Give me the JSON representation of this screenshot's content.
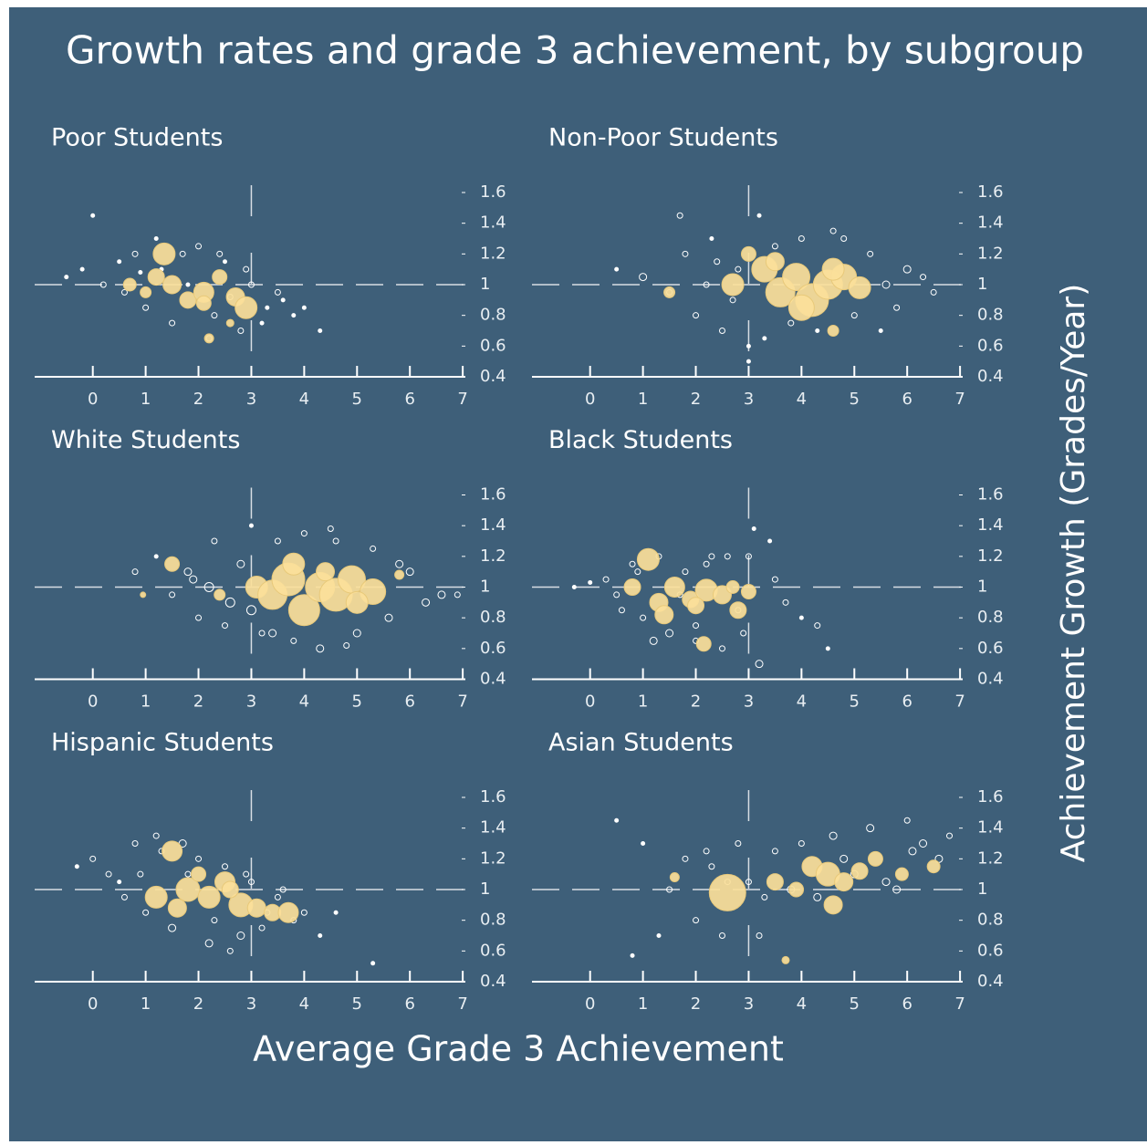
{
  "title": "Growth rates and grade 3 achievement, by subgroup",
  "xlabel": "Average Grade 3 Achievement",
  "ylabel": "Achievement Growth (Grades/Year)",
  "chart_data": [
    {
      "type": "scatter",
      "title": "Poor Students",
      "xlim": [
        -1.1,
        7.05
      ],
      "ylim": [
        0.4,
        1.6
      ],
      "xticks": [
        0,
        1,
        2,
        3,
        4,
        5,
        6,
        7
      ],
      "yticks": [
        0.4,
        0.6,
        0.8,
        1.0,
        1.2,
        1.4,
        1.6
      ],
      "xref": 3,
      "yref": 1.0,
      "series": [
        {
          "color": "#ffffff",
          "x": [
            -0.5,
            -0.2,
            0.2,
            0.5,
            0.8,
            1.0,
            1.3,
            1.5,
            1.8,
            2.0,
            2.3,
            2.5,
            2.8,
            3.0,
            3.3,
            3.5,
            3.8,
            4.0,
            4.3,
            0.6,
            1.2,
            2.2,
            2.9,
            3.6,
            1.7,
            0.9,
            2.6,
            3.2,
            0.0,
            2.4
          ],
          "y": [
            1.05,
            1.1,
            1.0,
            1.15,
            1.2,
            0.85,
            1.1,
            0.75,
            1.0,
            1.25,
            0.8,
            1.15,
            0.7,
            1.0,
            0.85,
            0.95,
            0.8,
            0.85,
            0.7,
            0.95,
            1.3,
            0.65,
            1.1,
            0.9,
            1.2,
            1.08,
            0.92,
            0.75,
            1.45,
            1.2
          ],
          "sizes": [
            2,
            2,
            3,
            2,
            3,
            3,
            2,
            3,
            2,
            3,
            3,
            2,
            3,
            3,
            2,
            3,
            2,
            2,
            2,
            3,
            2,
            3,
            3,
            2,
            3,
            2,
            3,
            2,
            2,
            3
          ]
        },
        {
          "color": "#fbe09a",
          "x": [
            1.35,
            0.7,
            1.0,
            1.5,
            1.8,
            2.1,
            2.4,
            2.7,
            2.9,
            2.2,
            1.2,
            2.6,
            2.1
          ],
          "y": [
            1.2,
            1.0,
            0.95,
            1.0,
            0.9,
            0.95,
            1.05,
            0.92,
            0.85,
            0.65,
            1.05,
            0.75,
            0.88
          ],
          "sizes": [
            12,
            7,
            6,
            10,
            9,
            11,
            8,
            10,
            12,
            5,
            9,
            4,
            8
          ]
        }
      ]
    },
    {
      "type": "scatter",
      "title": "Non-Poor Students",
      "xlim": [
        -1.1,
        7.05
      ],
      "ylim": [
        0.4,
        1.6
      ],
      "xticks": [
        0,
        1,
        2,
        3,
        4,
        5,
        6,
        7
      ],
      "yticks": [
        0.4,
        0.6,
        0.8,
        1.0,
        1.2,
        1.4,
        1.6
      ],
      "xref": 3,
      "yref": 1.0,
      "series": [
        {
          "color": "#ffffff",
          "x": [
            0.5,
            1.0,
            1.5,
            1.8,
            2.0,
            2.3,
            2.5,
            2.8,
            3.0,
            3.2,
            3.5,
            3.8,
            4.0,
            4.3,
            4.6,
            5.0,
            5.3,
            5.6,
            6.0,
            6.3,
            2.2,
            2.7,
            3.3,
            4.8,
            5.8,
            1.7,
            3.0,
            6.5,
            2.4,
            5.5
          ],
          "y": [
            1.1,
            1.05,
            0.95,
            1.2,
            0.8,
            1.3,
            0.7,
            1.1,
            0.6,
            1.45,
            1.25,
            0.75,
            1.3,
            0.7,
            1.35,
            0.8,
            1.2,
            1.0,
            1.1,
            1.05,
            1.0,
            0.9,
            0.65,
            1.3,
            0.85,
            1.45,
            0.5,
            0.95,
            1.15,
            0.7
          ],
          "sizes": [
            2,
            4,
            3,
            3,
            3,
            2,
            3,
            3,
            2,
            2,
            3,
            3,
            3,
            2,
            3,
            3,
            3,
            4,
            4,
            3,
            3,
            3,
            2,
            3,
            3,
            3,
            2,
            3,
            3,
            2
          ]
        },
        {
          "color": "#fbe09a",
          "x": [
            2.7,
            3.3,
            3.6,
            3.9,
            4.2,
            4.5,
            4.8,
            5.1,
            3.5,
            4.0,
            4.6,
            1.5,
            4.6,
            3.0
          ],
          "y": [
            1.0,
            1.1,
            0.95,
            1.05,
            0.9,
            1.0,
            1.05,
            0.98,
            1.15,
            0.85,
            1.1,
            0.95,
            0.7,
            1.2
          ],
          "sizes": [
            12,
            14,
            16,
            15,
            18,
            16,
            14,
            12,
            10,
            14,
            12,
            6,
            6,
            8
          ]
        }
      ]
    },
    {
      "type": "scatter",
      "title": "White Students",
      "xlim": [
        -1.1,
        7.05
      ],
      "ylim": [
        0.4,
        1.6
      ],
      "xticks": [
        0,
        1,
        2,
        3,
        4,
        5,
        6,
        7
      ],
      "yticks": [
        0.4,
        0.6,
        0.8,
        1.0,
        1.2,
        1.4,
        1.6
      ],
      "xref": 3,
      "yref": 1.0,
      "series": [
        {
          "color": "#ffffff",
          "x": [
            0.8,
            1.2,
            1.5,
            1.8,
            2.0,
            2.3,
            2.5,
            2.8,
            3.0,
            3.2,
            3.5,
            3.8,
            4.0,
            4.3,
            4.6,
            5.0,
            5.3,
            5.6,
            6.0,
            6.3,
            6.6,
            6.9,
            2.2,
            2.6,
            3.4,
            4.5,
            5.8,
            3.0,
            4.8,
            1.9
          ],
          "y": [
            1.1,
            1.2,
            0.95,
            1.1,
            0.8,
            1.3,
            0.75,
            1.15,
            1.4,
            0.7,
            1.3,
            0.65,
            1.35,
            0.6,
            1.3,
            0.7,
            1.25,
            0.8,
            1.1,
            0.9,
            0.95,
            0.95,
            1.0,
            0.9,
            0.7,
            1.38,
            1.15,
            0.85,
            0.62,
            1.05
          ],
          "sizes": [
            3,
            2,
            3,
            4,
            3,
            3,
            3,
            4,
            2,
            3,
            3,
            3,
            3,
            4,
            3,
            4,
            3,
            4,
            4,
            4,
            4,
            3,
            5,
            5,
            4,
            3,
            4,
            5,
            3,
            4
          ]
        },
        {
          "color": "#fbe09a",
          "x": [
            1.5,
            2.4,
            3.1,
            3.4,
            3.7,
            4.0,
            4.3,
            4.6,
            4.9,
            5.3,
            3.8,
            4.4,
            5.0,
            0.95,
            5.8
          ],
          "y": [
            1.15,
            0.95,
            1.0,
            0.95,
            1.05,
            0.85,
            1.0,
            0.95,
            1.05,
            0.97,
            1.15,
            1.1,
            0.9,
            0.95,
            1.08
          ],
          "sizes": [
            8,
            6,
            12,
            16,
            18,
            17,
            16,
            18,
            15,
            14,
            12,
            10,
            12,
            3,
            5
          ]
        }
      ]
    },
    {
      "type": "scatter",
      "title": "Black Students",
      "xlim": [
        -1.1,
        7.05
      ],
      "ylim": [
        0.4,
        1.6
      ],
      "xticks": [
        0,
        1,
        2,
        3,
        4,
        5,
        6,
        7
      ],
      "yticks": [
        0.4,
        0.6,
        0.8,
        1.0,
        1.2,
        1.4,
        1.6
      ],
      "xref": 3,
      "yref": 1.0,
      "series": [
        {
          "color": "#ffffff",
          "x": [
            -0.3,
            0.0,
            0.3,
            0.5,
            0.8,
            1.0,
            1.3,
            1.5,
            1.8,
            2.0,
            2.3,
            2.5,
            2.8,
            3.0,
            3.2,
            3.5,
            3.7,
            4.0,
            4.3,
            0.6,
            1.2,
            2.2,
            2.9,
            3.4,
            1.7,
            0.9,
            2.6,
            3.1,
            4.5,
            2.0
          ],
          "y": [
            1.0,
            1.03,
            1.05,
            0.95,
            1.15,
            0.8,
            1.2,
            0.7,
            1.1,
            0.75,
            1.2,
            0.6,
            0.85,
            1.2,
            0.5,
            1.05,
            0.9,
            0.8,
            0.75,
            0.85,
            0.65,
            1.15,
            0.7,
            1.3,
            0.95,
            1.1,
            1.2,
            1.38,
            0.6,
            0.65
          ],
          "sizes": [
            2,
            2,
            3,
            3,
            3,
            3,
            3,
            4,
            3,
            3,
            3,
            3,
            3,
            3,
            4,
            3,
            3,
            2,
            3,
            3,
            4,
            3,
            3,
            2,
            3,
            3,
            3,
            2,
            2,
            3
          ]
        },
        {
          "color": "#fbe09a",
          "x": [
            1.1,
            0.8,
            1.3,
            1.6,
            1.9,
            2.2,
            2.5,
            2.8,
            3.0,
            2.15,
            1.4,
            2.0,
            2.7
          ],
          "y": [
            1.18,
            1.0,
            0.9,
            1.0,
            0.92,
            0.98,
            0.95,
            0.85,
            0.97,
            0.63,
            0.82,
            0.88,
            1.0
          ],
          "sizes": [
            12,
            9,
            10,
            11,
            9,
            12,
            10,
            9,
            8,
            8,
            10,
            9,
            7
          ]
        }
      ]
    },
    {
      "type": "scatter",
      "title": "Hispanic Students",
      "xlim": [
        -1.1,
        7.05
      ],
      "ylim": [
        0.4,
        1.6
      ],
      "xticks": [
        0,
        1,
        2,
        3,
        4,
        5,
        6,
        7
      ],
      "yticks": [
        0.4,
        0.6,
        0.8,
        1.0,
        1.2,
        1.4,
        1.6
      ],
      "xref": 3,
      "yref": 1.0,
      "series": [
        {
          "color": "#ffffff",
          "x": [
            -0.3,
            0.0,
            0.3,
            0.5,
            0.8,
            1.0,
            1.3,
            1.5,
            1.8,
            2.0,
            2.3,
            2.5,
            2.8,
            3.0,
            3.3,
            3.5,
            3.8,
            4.0,
            4.3,
            0.6,
            1.2,
            2.2,
            2.9,
            3.6,
            1.7,
            0.9,
            2.6,
            3.2,
            5.3,
            4.6
          ],
          "y": [
            1.15,
            1.2,
            1.1,
            1.05,
            1.3,
            0.85,
            1.25,
            0.75,
            1.1,
            1.2,
            0.8,
            1.15,
            0.7,
            1.05,
            0.85,
            0.95,
            0.8,
            0.85,
            0.7,
            0.95,
            1.35,
            0.65,
            1.1,
            1.0,
            1.3,
            1.1,
            0.6,
            0.75,
            0.52,
            0.85
          ],
          "sizes": [
            2,
            3,
            3,
            2,
            3,
            3,
            3,
            4,
            3,
            3,
            3,
            3,
            4,
            3,
            3,
            3,
            3,
            3,
            2,
            3,
            3,
            4,
            3,
            3,
            4,
            3,
            3,
            3,
            2,
            2
          ]
        },
        {
          "color": "#fbe09a",
          "x": [
            1.5,
            1.2,
            1.8,
            2.2,
            2.5,
            2.8,
            3.1,
            3.4,
            3.7,
            2.0,
            1.6,
            2.6
          ],
          "y": [
            1.25,
            0.95,
            1.0,
            0.95,
            1.05,
            0.9,
            0.88,
            0.85,
            0.85,
            1.1,
            0.88,
            1.0
          ],
          "sizes": [
            11,
            12,
            13,
            12,
            11,
            13,
            10,
            9,
            11,
            8,
            10,
            9
          ]
        }
      ]
    },
    {
      "type": "scatter",
      "title": "Asian Students",
      "xlim": [
        -1.1,
        7.05
      ],
      "ylim": [
        0.4,
        1.6
      ],
      "xticks": [
        0,
        1,
        2,
        3,
        4,
        5,
        6,
        7
      ],
      "yticks": [
        0.4,
        0.6,
        0.8,
        1.0,
        1.2,
        1.4,
        1.6
      ],
      "xref": 3,
      "yref": 1.0,
      "series": [
        {
          "color": "#ffffff",
          "x": [
            0.5,
            0.8,
            1.0,
            1.5,
            1.8,
            2.0,
            2.3,
            2.5,
            2.8,
            3.0,
            3.2,
            3.5,
            3.8,
            4.0,
            4.3,
            4.6,
            5.0,
            5.3,
            5.6,
            6.0,
            6.3,
            6.6,
            6.8,
            2.2,
            3.3,
            4.8,
            5.8,
            1.3,
            6.1,
            2.6
          ],
          "y": [
            1.45,
            0.57,
            1.3,
            1.0,
            1.2,
            0.8,
            1.15,
            0.7,
            1.3,
            1.05,
            0.7,
            1.25,
            1.0,
            1.3,
            0.95,
            1.35,
            1.1,
            1.4,
            1.05,
            1.45,
            1.3,
            1.2,
            1.35,
            1.25,
            0.95,
            1.2,
            1.0,
            0.7,
            1.25,
            1.05
          ],
          "sizes": [
            2,
            2,
            2,
            3,
            3,
            3,
            3,
            3,
            3,
            3,
            3,
            3,
            4,
            3,
            4,
            4,
            4,
            4,
            4,
            3,
            4,
            4,
            3,
            3,
            3,
            4,
            4,
            2,
            4,
            3
          ]
        },
        {
          "color": "#fbe09a",
          "x": [
            2.6,
            3.5,
            3.9,
            4.2,
            4.5,
            4.8,
            5.1,
            5.4,
            5.9,
            6.5,
            4.6,
            3.7,
            1.6
          ],
          "y": [
            0.98,
            1.05,
            1.0,
            1.15,
            1.1,
            1.05,
            1.12,
            1.2,
            1.1,
            1.15,
            0.9,
            0.54,
            1.08
          ],
          "sizes": [
            20,
            9,
            8,
            11,
            13,
            10,
            9,
            8,
            7,
            7,
            10,
            4,
            5
          ]
        }
      ]
    }
  ]
}
